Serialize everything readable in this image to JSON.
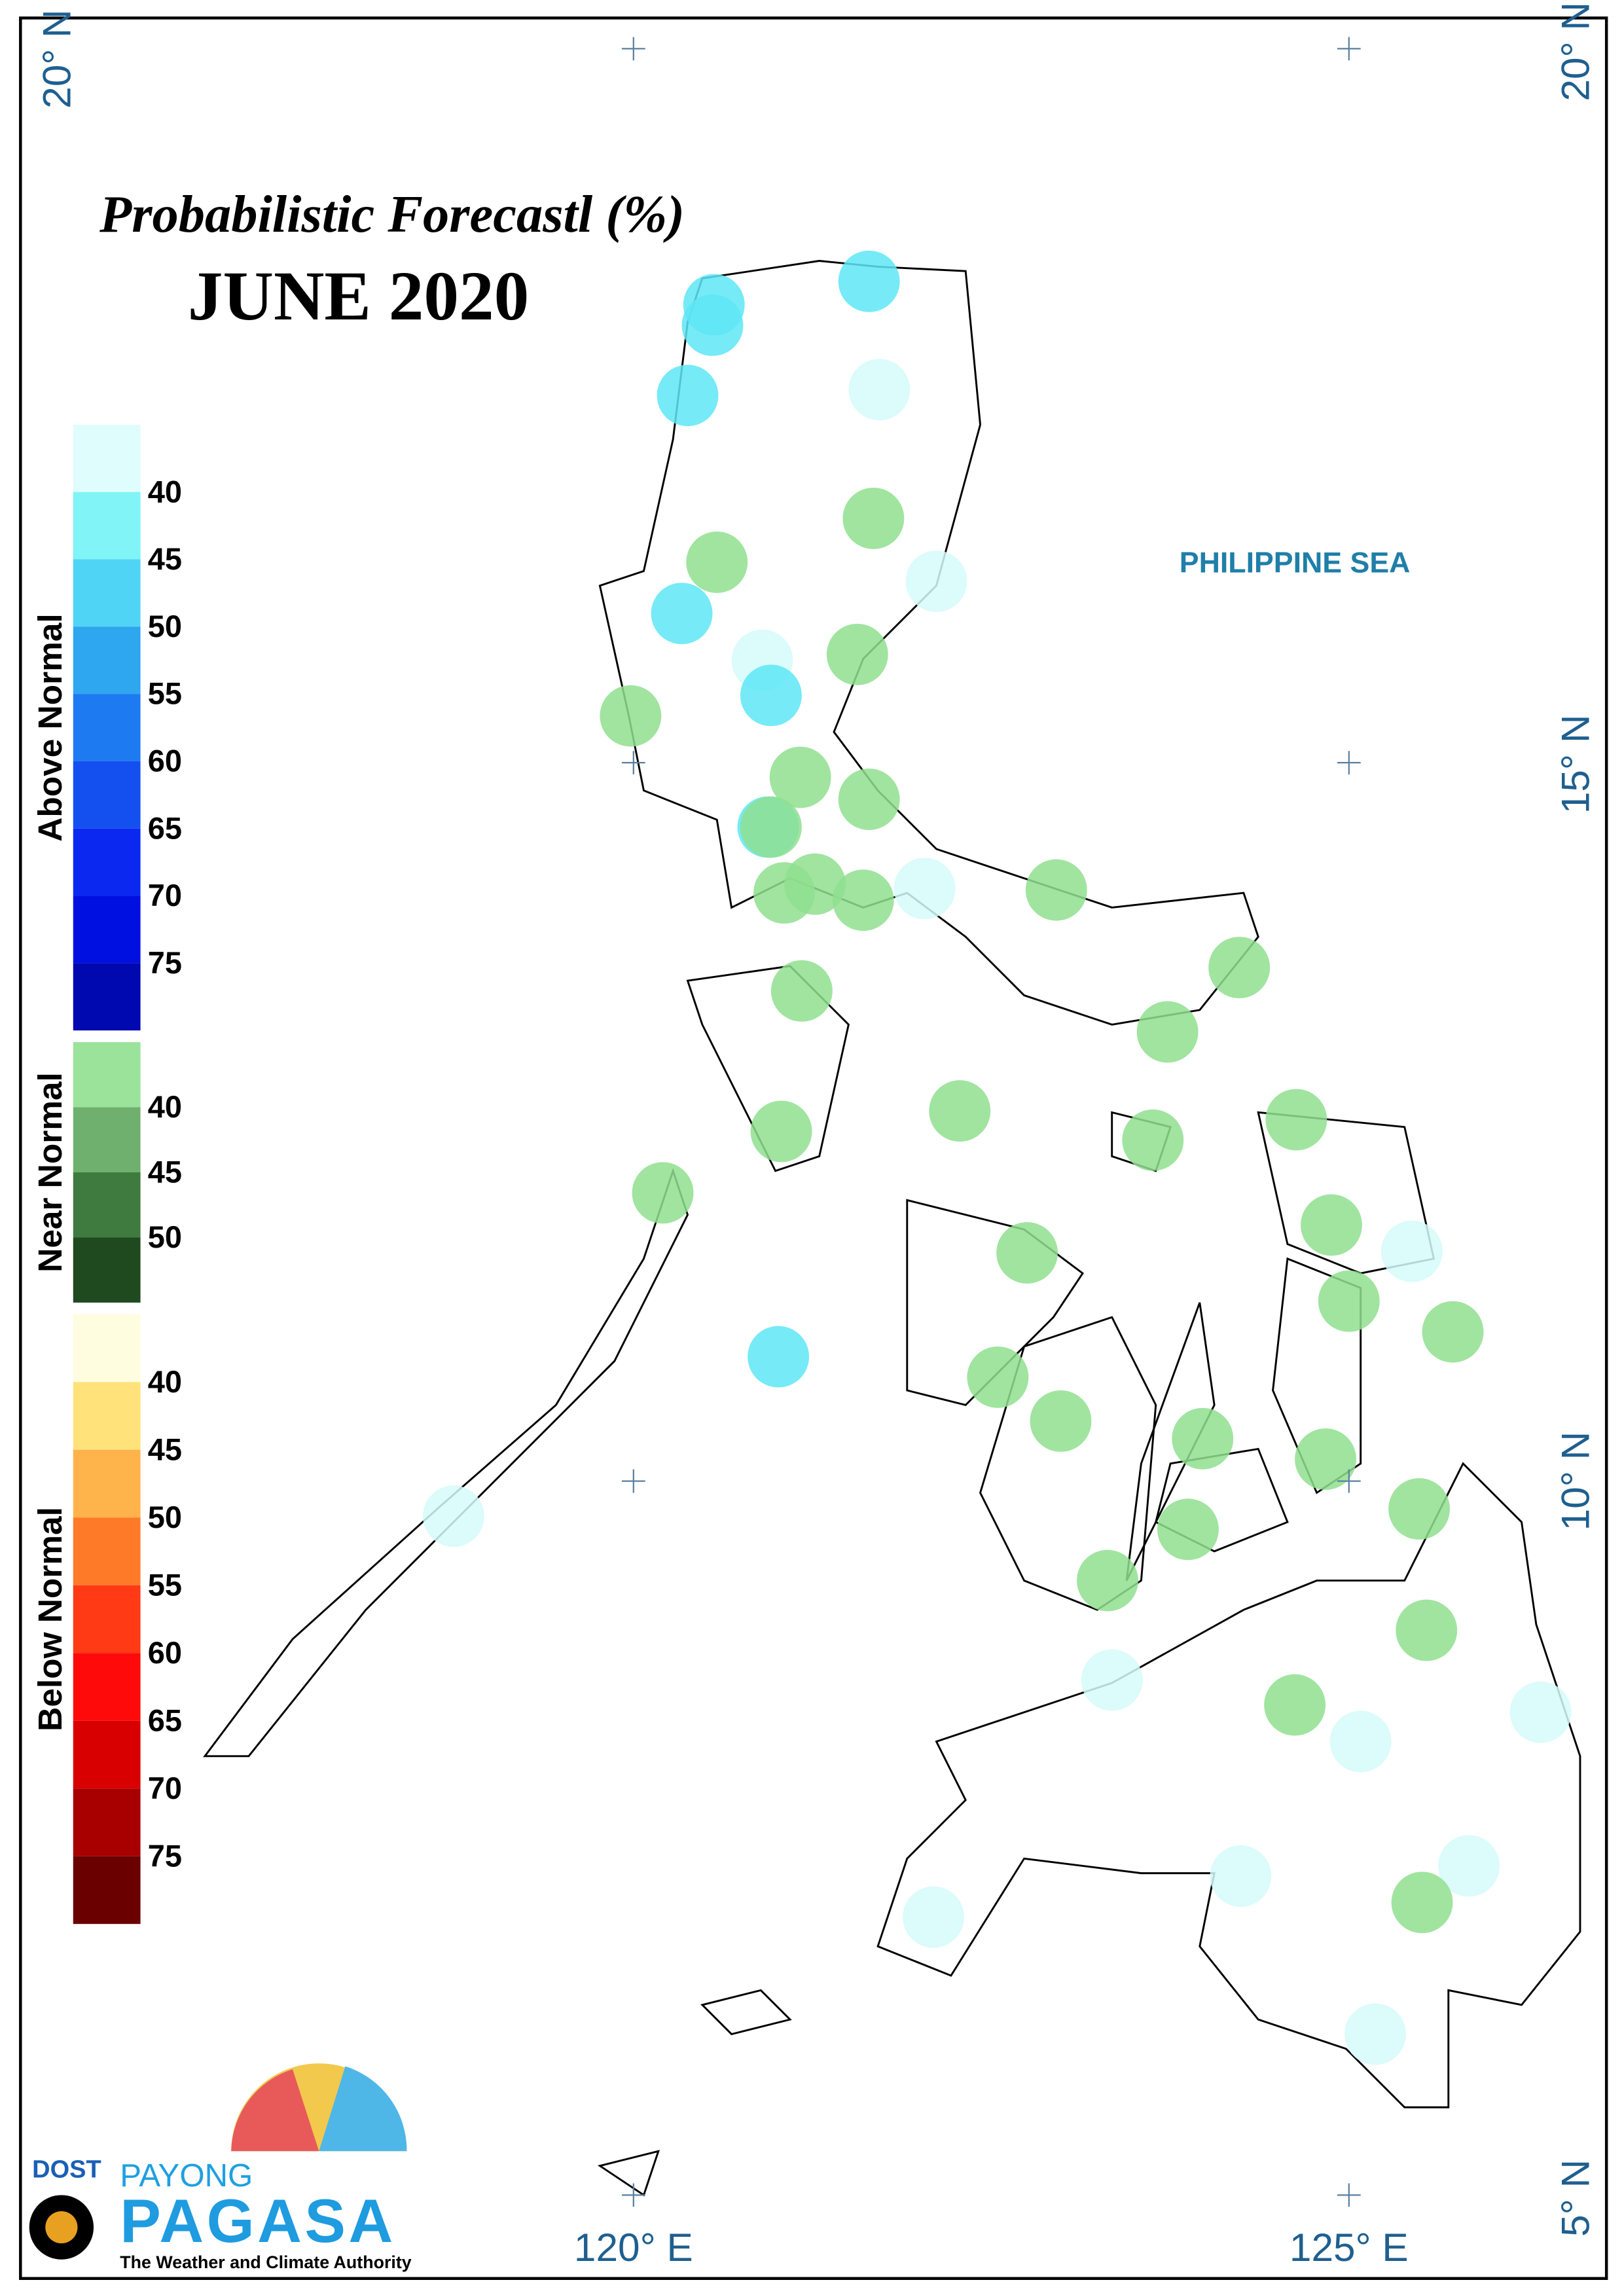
{
  "title": "Probabilistic Forecastl (%)",
  "subtitle": "JUNE 2020",
  "sea_label": "PHILIPPINE SEA",
  "legend": {
    "above": {
      "label": "Above Normal",
      "colors": [
        "#e0fdfd",
        "#80f4f6",
        "#4fd4f5",
        "#2ea6f0",
        "#1e7af0",
        "#1450f0",
        "#0a28f0",
        "#0010e0",
        "#0008b0"
      ],
      "ticks": [
        40,
        45,
        50,
        55,
        60,
        65,
        70,
        75
      ]
    },
    "near": {
      "label": "Near Normal",
      "colors": [
        "#9be39b",
        "#6fb06f",
        "#3f7a3f",
        "#1f4a1f"
      ],
      "ticks": [
        40,
        45,
        50
      ]
    },
    "below": {
      "label": "Below Normal",
      "colors": [
        "#fffde0",
        "#ffe27a",
        "#ffb34a",
        "#ff7a28",
        "#ff3a14",
        "#ff0a0a",
        "#d80000",
        "#a80000",
        "#6a0000"
      ],
      "ticks": [
        40,
        45,
        50,
        55,
        60,
        65,
        70,
        75
      ]
    }
  },
  "lat_labels": [
    "20° N",
    "15° N",
    "10° N",
    "5° N"
  ],
  "lon_labels": [
    "120° E",
    "125° E"
  ],
  "logo": {
    "agency": "DOST",
    "name_top": "PAYONG",
    "name": "PAGASA",
    "tagline": "The Weather and Climate Authority"
  }
}
